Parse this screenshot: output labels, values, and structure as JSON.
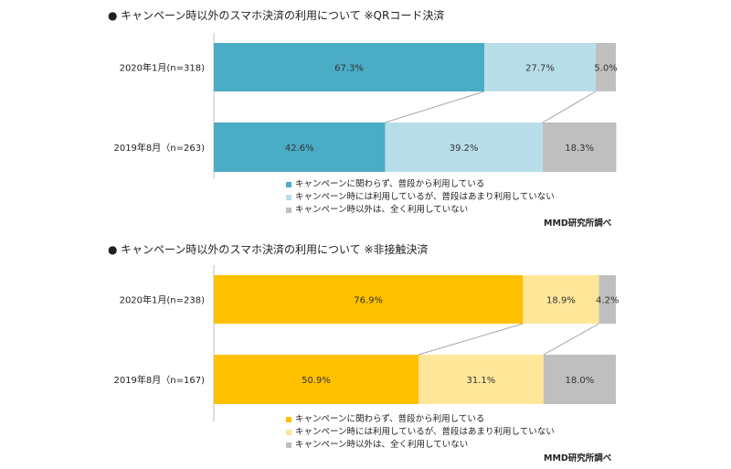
{
  "chart_data": [
    {
      "type": "bar",
      "orientation": "horizontal-stacked-percent",
      "title": "キャンペーン時以外のスマホ決済の利用について ※QRコード決済",
      "categories": [
        "2020年1月(n=318)",
        "2019年8月（n=263)"
      ],
      "series": [
        {
          "name": "キャンペーンに関わらず、普段から利用している",
          "values": [
            67.3,
            42.6
          ],
          "labels": [
            "67.3%",
            "42.6%"
          ],
          "color": "#4bacc6"
        },
        {
          "name": "キャンペーン時には利用しているが、普段はあまり利用していない",
          "values": [
            27.7,
            39.2
          ],
          "labels": [
            "27.7%",
            "39.2%"
          ],
          "color": "#b7dee8"
        },
        {
          "name": "キャンペーン時以外は、全く利用していない",
          "values": [
            5.0,
            18.3
          ],
          "labels": [
            "5.0%",
            "18.3%"
          ],
          "color": "#bfbfbf"
        }
      ],
      "xlim": [
        0,
        100
      ],
      "legend_position": "bottom",
      "source": "MMD研究所調べ"
    },
    {
      "type": "bar",
      "orientation": "horizontal-stacked-percent",
      "title": "キャンペーン時以外のスマホ決済の利用について ※非接触決済",
      "categories": [
        "2020年1月(n=238)",
        "2019年8月（n=167)"
      ],
      "series": [
        {
          "name": "キャンペーンに関わらず、普段から利用している",
          "values": [
            76.9,
            50.9
          ],
          "labels": [
            "76.9%",
            "50.9%"
          ],
          "color": "#ffc000"
        },
        {
          "name": "キャンペーン時には利用しているが、普段はあまり利用していない",
          "values": [
            18.9,
            31.1
          ],
          "labels": [
            "18.9%",
            "31.1%"
          ],
          "color": "#ffe699"
        },
        {
          "name": "キャンペーン時以外は、全く利用していない",
          "values": [
            4.2,
            18.0
          ],
          "labels": [
            "4.2%",
            "18.0%"
          ],
          "color": "#bfbfbf"
        }
      ],
      "xlim": [
        0,
        100
      ],
      "legend_position": "bottom",
      "source": "MMD研究所調べ"
    }
  ]
}
